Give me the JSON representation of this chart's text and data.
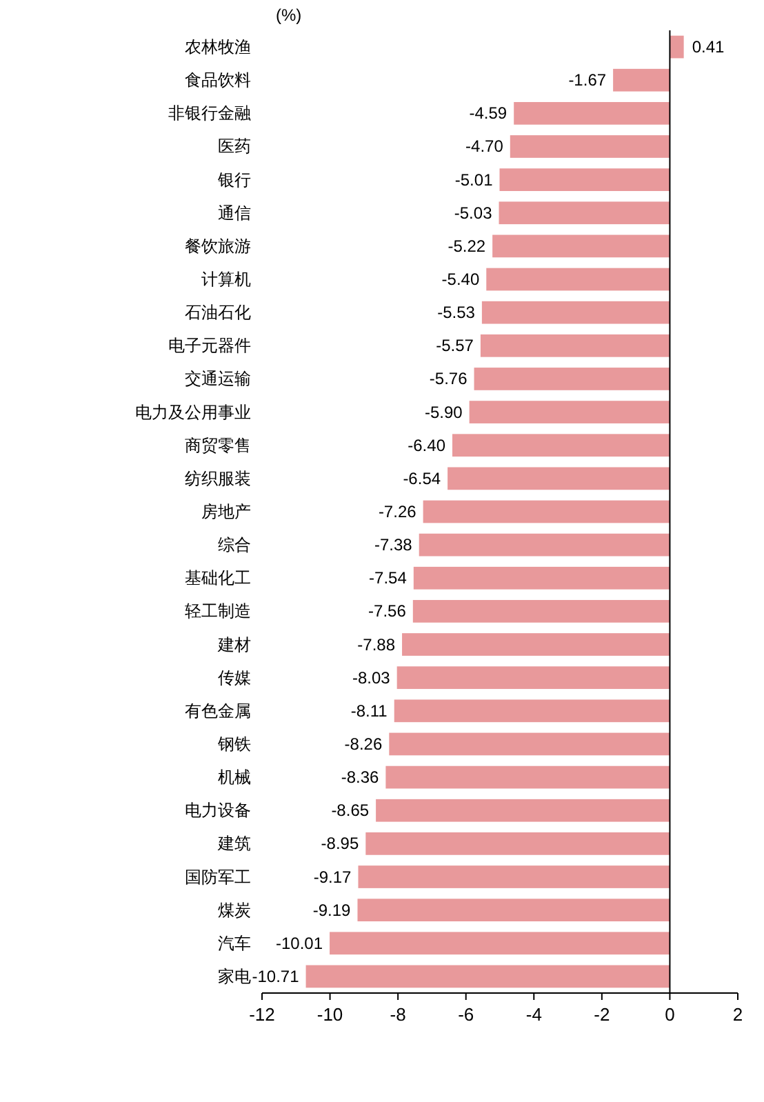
{
  "chart_data": {
    "type": "bar",
    "orientation": "horizontal",
    "xlabel": "(%)",
    "categories": [
      "农林牧渔",
      "食品饮料",
      "非银行金融",
      "医药",
      "银行",
      "通信",
      "餐饮旅游",
      "计算机",
      "石油石化",
      "电子元器件",
      "交通运输",
      "电力及公用事业",
      "商贸零售",
      "纺织服装",
      "房地产",
      "综合",
      "基础化工",
      "轻工制造",
      "建材",
      "传媒",
      "有色金属",
      "钢铁",
      "机械",
      "电力设备",
      "建筑",
      "国防军工",
      "煤炭",
      "汽车",
      "家电"
    ],
    "values": [
      0.41,
      -1.67,
      -4.59,
      -4.7,
      -5.01,
      -5.03,
      -5.22,
      -5.4,
      -5.53,
      -5.57,
      -5.76,
      -5.9,
      -6.4,
      -6.54,
      -7.26,
      -7.38,
      -7.54,
      -7.56,
      -7.88,
      -8.03,
      -8.11,
      -8.26,
      -8.36,
      -8.65,
      -8.95,
      -9.17,
      -9.19,
      -10.01,
      -10.71
    ],
    "value_labels": [
      "0.41",
      "-1.67",
      "-4.59",
      "-4.70",
      "-5.01",
      "-5.03",
      "-5.22",
      "-5.40",
      "-5.53",
      "-5.57",
      "-5.76",
      "-5.90",
      "-6.40",
      "-6.54",
      "-7.26",
      "-7.38",
      "-7.54",
      "-7.56",
      "-7.88",
      "-8.03",
      "-8.11",
      "-8.26",
      "-8.36",
      "-8.65",
      "-8.95",
      "-9.17",
      "-9.19",
      "-10.01",
      "-10.71"
    ],
    "color": "#e8999b",
    "xlim": [
      -12,
      2
    ],
    "xticks": [
      -12,
      -10,
      -8,
      -6,
      -4,
      -2,
      0,
      2
    ]
  }
}
